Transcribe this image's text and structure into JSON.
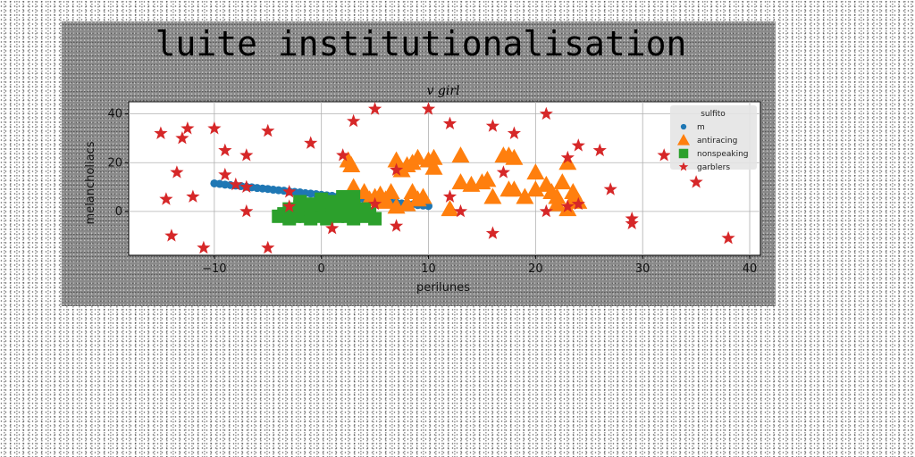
{
  "chart_data": {
    "type": "scatter",
    "title": "luite institutionalisation",
    "subtitle": "v girl",
    "xlabel": "perilunes",
    "ylabel": "melancholiacs",
    "xlim": [
      -18,
      41
    ],
    "ylim": [
      -18,
      45
    ],
    "xticks": [
      -10,
      0,
      10,
      20,
      30,
      40
    ],
    "yticks": [
      0,
      20,
      40
    ],
    "grid": true,
    "legend": {
      "title": "sulfito",
      "placement": "top-right"
    },
    "series": [
      {
        "name": "m",
        "marker": "point",
        "color": "#1f77b4",
        "x": [
          -10,
          -9.5,
          -9,
          -8.5,
          -8,
          -7.5,
          -7,
          -6.5,
          -6,
          -5.5,
          -5,
          -4.5,
          -4,
          -3.5,
          -3,
          -2.5,
          -2,
          -1.5,
          -1,
          -0.5,
          0,
          0.5,
          1,
          1.5,
          2,
          2.5,
          3,
          3.5,
          4,
          4.5,
          5,
          5.5,
          6,
          6.5,
          7,
          7.5,
          8,
          8.5,
          9,
          9.5,
          10
        ],
        "y": [
          11.5,
          11.3,
          11.0,
          10.8,
          10.6,
          10.4,
          10.1,
          9.9,
          9.6,
          9.4,
          9.2,
          8.9,
          8.7,
          8.5,
          8.2,
          8.0,
          7.8,
          7.5,
          7.3,
          7.1,
          6.8,
          6.6,
          6.4,
          6.1,
          5.9,
          5.7,
          5.4,
          5.2,
          5.0,
          4.7,
          4.5,
          4.3,
          4.0,
          3.8,
          3.6,
          3.3,
          3.1,
          2.9,
          2.6,
          2.4,
          2.2
        ]
      },
      {
        "name": "antiracing",
        "marker": "triangle",
        "color": "#ff7f0e",
        "x": [
          2.5,
          3,
          4,
          5,
          5.5,
          6,
          6.5,
          7,
          7,
          7.5,
          8,
          8,
          8.5,
          9,
          9,
          9.5,
          10,
          10.5,
          10.5,
          12,
          13,
          13,
          14,
          15,
          15.5,
          16,
          17,
          17.5,
          17.5,
          18,
          18,
          19,
          20,
          20,
          21,
          21.5,
          22,
          22,
          22.5,
          23,
          23,
          23.5,
          23.5,
          24,
          2.8,
          4.5,
          6,
          8.5
        ],
        "y": [
          21,
          10,
          8,
          6,
          7,
          5,
          8,
          21,
          2,
          17,
          19,
          3,
          20,
          22,
          5,
          6,
          21,
          18,
          22,
          1,
          23,
          12,
          11,
          12,
          13,
          6,
          23,
          23,
          9,
          9,
          22,
          6,
          16,
          9,
          11,
          8,
          6,
          3,
          12,
          1,
          20,
          8,
          5,
          4,
          19,
          5,
          4,
          8
        ]
      },
      {
        "name": "nonspeaking",
        "marker": "square",
        "color": "#2ca02c",
        "x": [
          -4,
          -3.5,
          -3,
          -2.5,
          -2,
          -1.5,
          -1,
          -0.5,
          0,
          0.5,
          1,
          1.5,
          2,
          2.5,
          3,
          3.5,
          4,
          4.5,
          5,
          -3,
          -2,
          -1,
          0,
          1,
          2,
          3,
          4,
          -2,
          -1,
          0,
          1,
          2,
          3
        ],
        "y": [
          -2,
          -1,
          -3,
          -2,
          -1,
          -2,
          -3,
          -1,
          -2,
          -3,
          -1,
          -2,
          -1,
          -2,
          -3,
          -1,
          -2,
          -1,
          -3,
          1,
          2,
          1,
          3,
          2,
          1,
          2,
          1,
          4,
          3,
          5,
          4,
          6,
          6
        ]
      },
      {
        "name": "garblers",
        "marker": "star",
        "color": "#d62728",
        "x": [
          -15,
          -14.5,
          -13.5,
          -13,
          -12.5,
          -12,
          -14,
          -11,
          -10,
          -9,
          -9,
          -8,
          -7,
          -7,
          -7,
          -5,
          -5,
          -3,
          -3,
          -1,
          1,
          2,
          3,
          5,
          5,
          7,
          7,
          10,
          12,
          12,
          13,
          16,
          16,
          17,
          18,
          21,
          21,
          23,
          23,
          24,
          24,
          26,
          27,
          29,
          29,
          32,
          35,
          38
        ],
        "y": [
          32,
          5,
          16,
          30,
          34,
          6,
          -10,
          -15,
          34,
          25,
          15,
          11,
          23,
          10,
          0,
          33,
          -15,
          2,
          8,
          28,
          -7,
          23,
          37,
          42,
          3,
          17,
          -6,
          42,
          36,
          6,
          0,
          35,
          -9,
          16,
          32,
          40,
          0,
          22,
          2,
          27,
          3,
          25,
          9,
          -3,
          -5,
          23,
          12,
          -11
        ]
      }
    ]
  }
}
